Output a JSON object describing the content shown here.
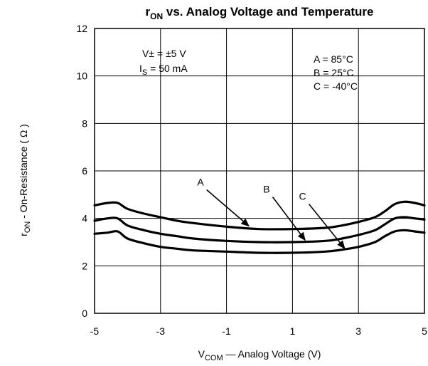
{
  "chart_data": {
    "type": "line",
    "title": {
      "main": "r",
      "sub": "ON",
      "rest": " vs. Analog Voltage and Temperature"
    },
    "xlabel": {
      "main": "V",
      "sub": "COM",
      "rest": " — Analog Voltage (V)"
    },
    "ylabel": {
      "main": "r",
      "sub": "ON",
      "rest": "  -  On-Resistance ( Ω )"
    },
    "xlim": [
      -5,
      5
    ],
    "ylim": [
      0,
      12
    ],
    "x_ticks": [
      "-5",
      "-3",
      "-1",
      "1",
      "3",
      "5"
    ],
    "y_ticks": [
      "0",
      "2",
      "4",
      "6",
      "8",
      "10",
      "12"
    ],
    "grid": true,
    "conditions": {
      "line1": "V± = ±5 V",
      "line2": {
        "main": "I",
        "sub": "S",
        "rest": " = 50 mA"
      }
    },
    "legend_lines": [
      "A = 85°C",
      "B = 25°C",
      "C = -40°C"
    ],
    "curve_labels": [
      "A",
      "B",
      "C"
    ],
    "series": [
      {
        "name": "A",
        "x": [
          -5,
          -4.6,
          -4.3,
          -4.0,
          -3.5,
          -3.0,
          -2.5,
          -2.0,
          -1.0,
          0.0,
          1.0,
          2.0,
          2.5,
          3.0,
          3.5,
          3.8,
          4.1,
          4.4,
          4.7,
          5.0
        ],
        "y": [
          4.55,
          4.65,
          4.65,
          4.4,
          4.2,
          4.05,
          3.9,
          3.8,
          3.65,
          3.55,
          3.55,
          3.6,
          3.7,
          3.85,
          4.05,
          4.3,
          4.6,
          4.7,
          4.65,
          4.55
        ]
      },
      {
        "name": "B",
        "x": [
          -5,
          -4.6,
          -4.3,
          -4.0,
          -3.5,
          -3.0,
          -2.5,
          -2.0,
          -1.0,
          0.0,
          1.0,
          2.0,
          2.5,
          3.0,
          3.5,
          3.8,
          4.1,
          4.4,
          4.7,
          5.0
        ],
        "y": [
          3.9,
          4.0,
          4.0,
          3.7,
          3.5,
          3.35,
          3.25,
          3.15,
          3.05,
          3.0,
          3.0,
          3.05,
          3.15,
          3.3,
          3.5,
          3.75,
          4.0,
          4.05,
          4.0,
          3.95
        ]
      },
      {
        "name": "C",
        "x": [
          -5,
          -4.6,
          -4.3,
          -4.0,
          -3.5,
          -3.0,
          -2.5,
          -2.0,
          -1.0,
          0.0,
          1.0,
          2.0,
          2.5,
          3.0,
          3.5,
          3.8,
          4.1,
          4.4,
          4.7,
          5.0
        ],
        "y": [
          3.35,
          3.4,
          3.45,
          3.15,
          2.95,
          2.8,
          2.72,
          2.65,
          2.6,
          2.55,
          2.55,
          2.6,
          2.68,
          2.8,
          3.0,
          3.25,
          3.45,
          3.5,
          3.45,
          3.4
        ]
      }
    ],
    "arrows": [
      {
        "label": "A",
        "from": [
          -1.6,
          5.2
        ],
        "to": [
          -0.3,
          3.65
        ]
      },
      {
        "label": "B",
        "from": [
          0.4,
          4.9
        ],
        "to": [
          1.4,
          3.05
        ]
      },
      {
        "label": "C",
        "from": [
          1.5,
          4.6
        ],
        "to": [
          2.6,
          2.7
        ]
      }
    ]
  }
}
